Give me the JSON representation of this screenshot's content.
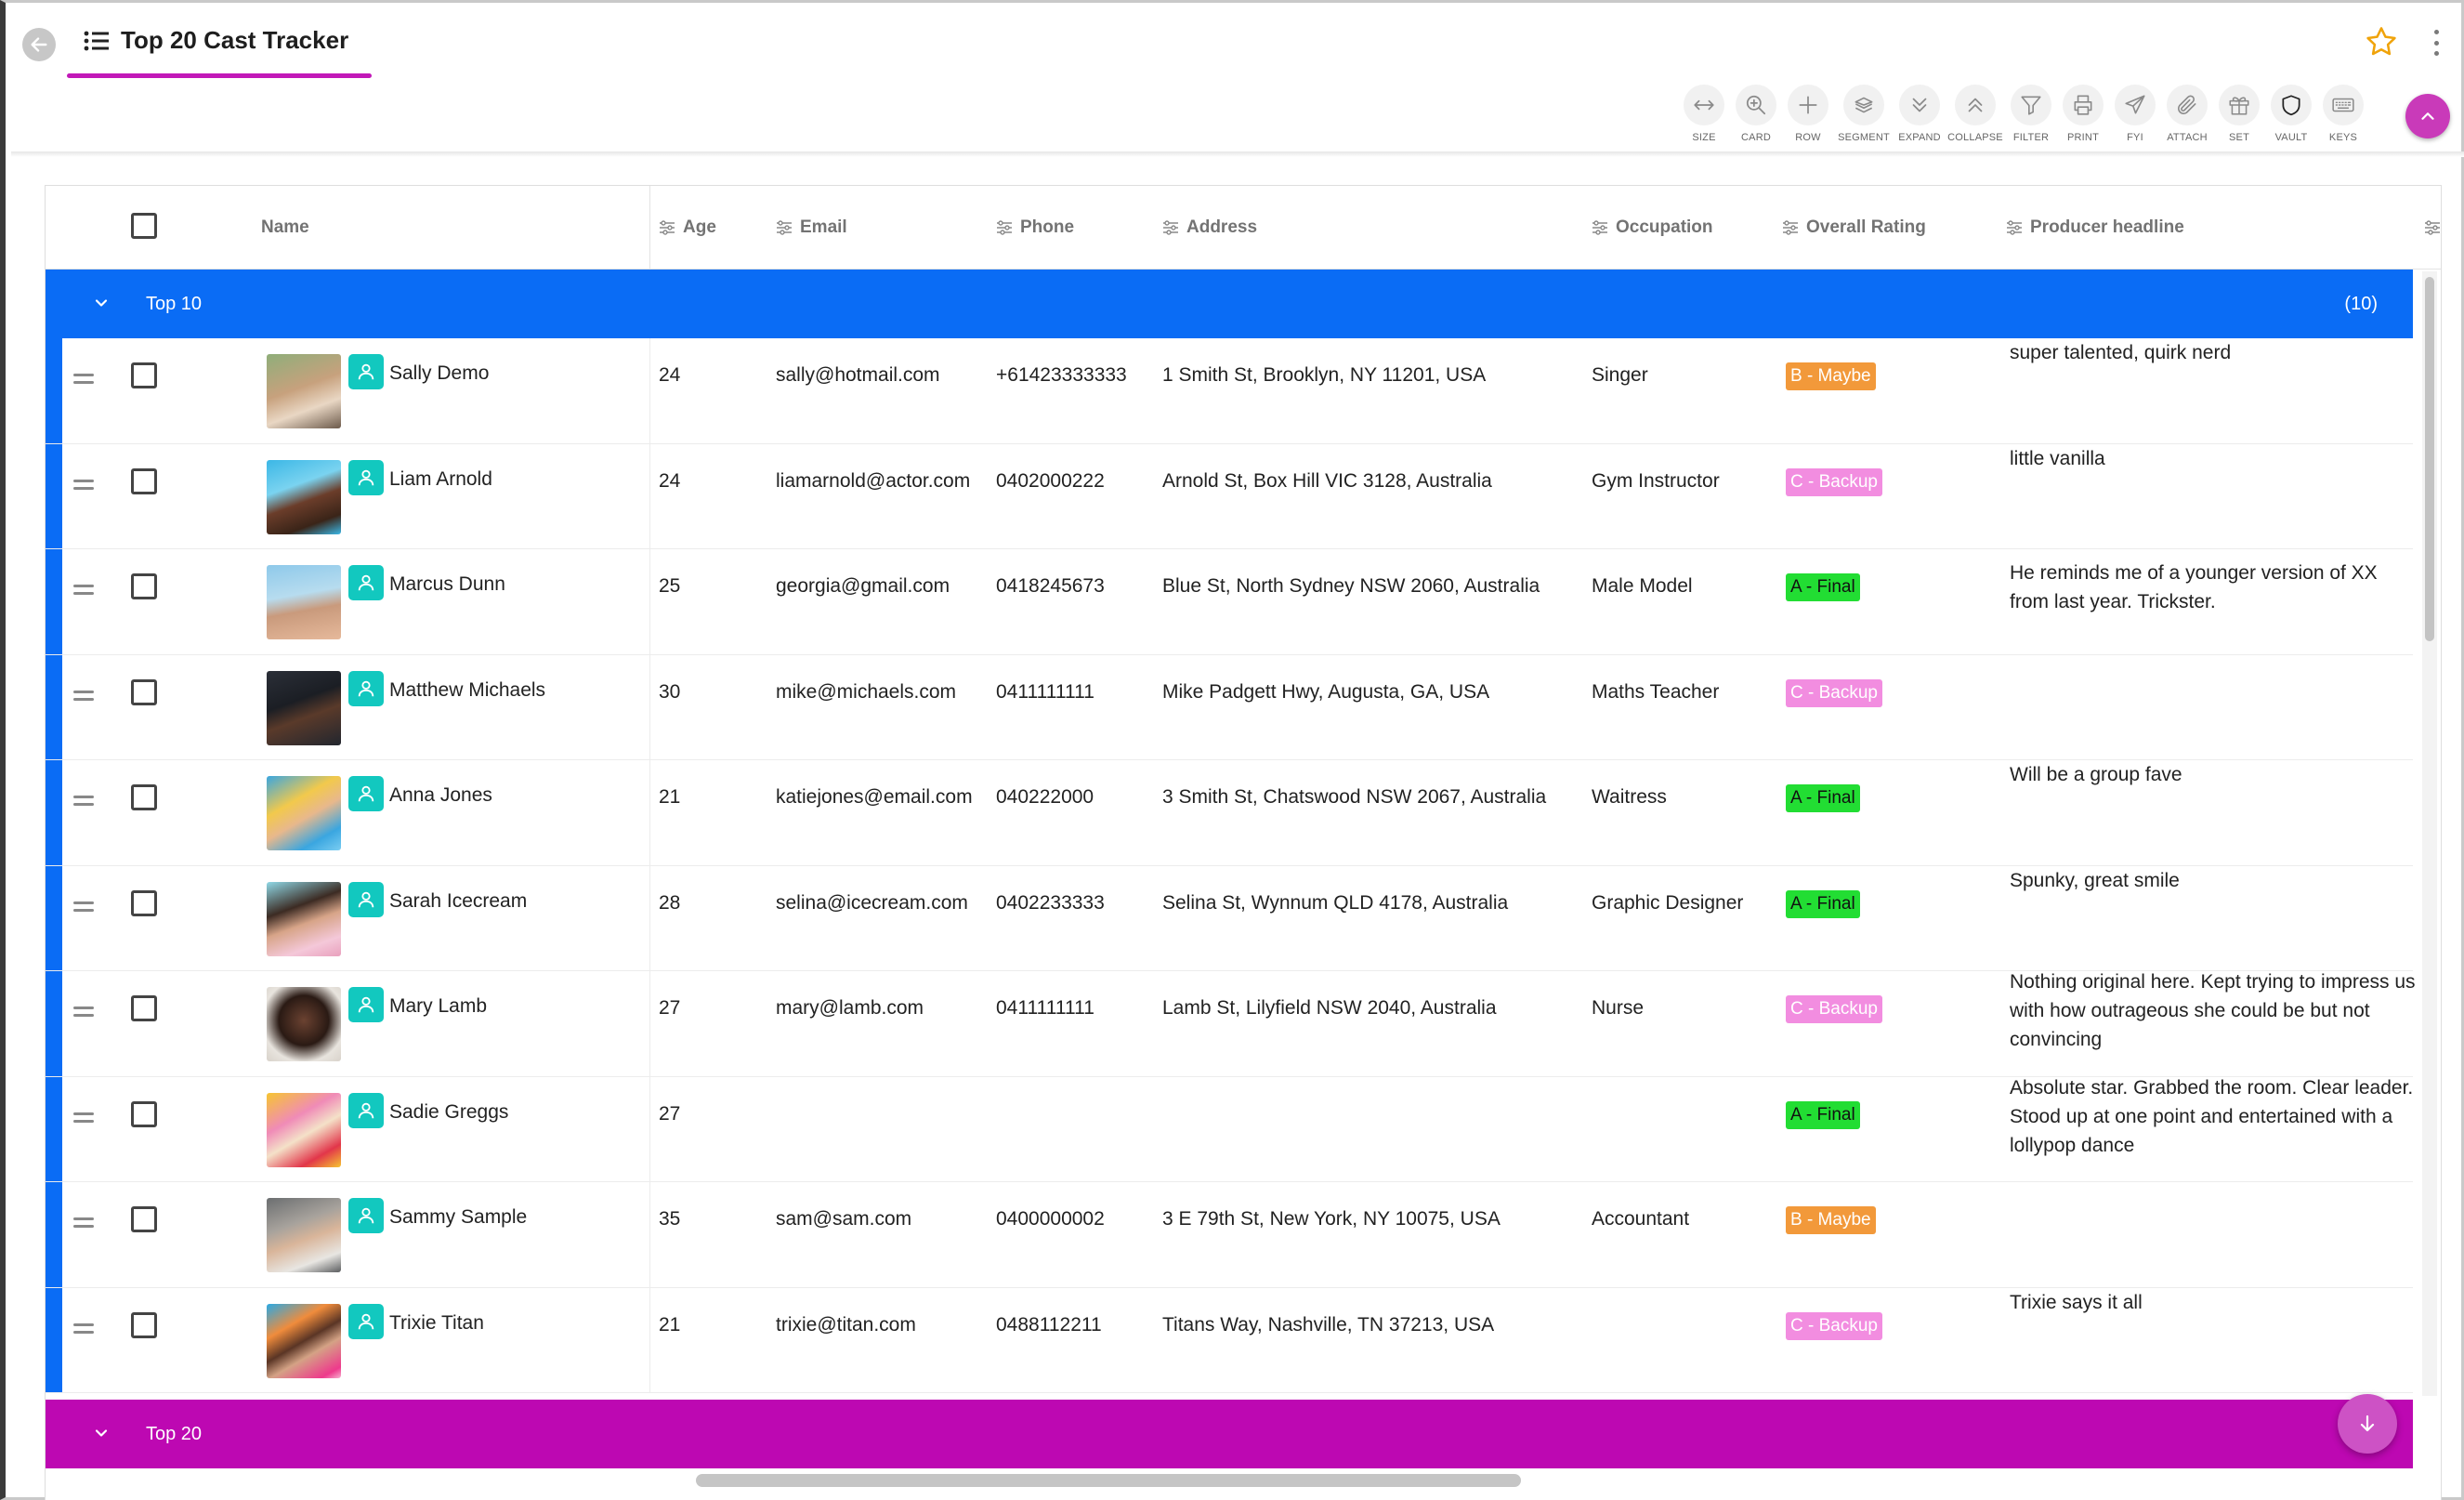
{
  "header": {
    "title": "Top 20 Cast Tracker"
  },
  "toolbar": {
    "items": [
      {
        "label": "SIZE",
        "icon": "resize-horizontal-icon"
      },
      {
        "label": "CARD",
        "icon": "zoom-in-icon"
      },
      {
        "label": "ROW",
        "icon": "plus-icon"
      },
      {
        "label": "SEGMENT",
        "icon": "segment-icon"
      },
      {
        "label": "EXPAND",
        "icon": "chevrons-down-icon"
      },
      {
        "label": "COLLAPSE",
        "icon": "chevrons-up-icon"
      },
      {
        "label": "FILTER",
        "icon": "filter-icon"
      },
      {
        "label": "PRINT",
        "icon": "printer-icon"
      },
      {
        "label": "FYI",
        "icon": "send-icon"
      },
      {
        "label": "ATTACH",
        "icon": "paperclip-icon"
      },
      {
        "label": "SET",
        "icon": "gift-icon"
      },
      {
        "label": "VAULT",
        "icon": "shield-icon"
      },
      {
        "label": "KEYS",
        "icon": "keyboard-icon"
      }
    ]
  },
  "columns": {
    "name": "Name",
    "age": "Age",
    "email": "Email",
    "phone": "Phone",
    "address": "Address",
    "occupation": "Occupation",
    "rating": "Overall Rating",
    "headline": "Producer headline"
  },
  "groups": {
    "top10": {
      "label": "Top 10",
      "count": "(10)",
      "color": "#0a6cf5"
    },
    "top20": {
      "label": "Top 20",
      "color": "#bd08b2"
    }
  },
  "rating_colors": {
    "B - Maybe": "#f2993a",
    "C - Backup": "#f28de0",
    "A - Final": "#22dd33"
  },
  "rows": [
    {
      "name": "Sally Demo",
      "age": "24",
      "email": "sally@hotmail.com",
      "phone": "+61423333333",
      "address": "1 Smith St, Brooklyn, NY 11201, USA",
      "occupation": "Singer",
      "rating": "B - Maybe",
      "headline": "super talented, quirk nerd"
    },
    {
      "name": "Liam Arnold",
      "age": "24",
      "email": "liamarnold@actor.com",
      "phone": "0402000222",
      "address": "Arnold St, Box Hill VIC 3128, Australia",
      "occupation": "Gym Instructor",
      "rating": "C - Backup",
      "headline": "little vanilla"
    },
    {
      "name": "Marcus Dunn",
      "age": "25",
      "email": "georgia@gmail.com",
      "phone": "0418245673",
      "address": "Blue St, North Sydney NSW 2060, Australia",
      "occupation": "Male Model",
      "rating": "A - Final",
      "headline": "He reminds me of a younger version of XX from last year. Trickster."
    },
    {
      "name": "Matthew Michaels",
      "age": "30",
      "email": "mike@michaels.com",
      "phone": "0411111111",
      "address": "Mike Padgett Hwy, Augusta, GA, USA",
      "occupation": "Maths Teacher",
      "rating": "C - Backup",
      "headline": ""
    },
    {
      "name": "Anna Jones",
      "age": "21",
      "email": "katiejones@email.com",
      "phone": "040222000",
      "address": "3 Smith St, Chatswood NSW 2067, Australia",
      "occupation": "Waitress",
      "rating": "A - Final",
      "headline": "Will be a group fave"
    },
    {
      "name": "Sarah Icecream",
      "age": "28",
      "email": "selina@icecream.com",
      "phone": "0402233333",
      "address": "Selina St, Wynnum QLD 4178, Australia",
      "occupation": "Graphic Designer",
      "rating": "A - Final",
      "headline": "Spunky, great smile"
    },
    {
      "name": "Mary Lamb",
      "age": "27",
      "email": "mary@lamb.com",
      "phone": "0411111111",
      "address": "Lamb St, Lilyfield NSW 2040, Australia",
      "occupation": "Nurse",
      "rating": "C - Backup",
      "headline": "Nothing original here. Kept trying to impress us with how outrageous she could be but not convincing"
    },
    {
      "name": "Sadie Greggs",
      "age": "27",
      "email": "",
      "phone": "",
      "address": "",
      "occupation": "",
      "rating": "A - Final",
      "headline": "Absolute star. Grabbed the room. Clear leader. Stood up at one point and entertained with a lollypop dance"
    },
    {
      "name": "Sammy Sample",
      "age": "35",
      "email": "sam@sam.com",
      "phone": "0400000002",
      "address": "3 E 79th St, New York, NY 10075, USA",
      "occupation": "Accountant",
      "rating": "B - Maybe",
      "headline": ""
    },
    {
      "name": "Trixie Titan",
      "age": "21",
      "email": "trixie@titan.com",
      "phone": "0488112211",
      "address": "Titans Way, Nashville, TN 37213, USA",
      "occupation": "",
      "rating": "C - Backup",
      "headline": "Trixie says it all"
    }
  ]
}
